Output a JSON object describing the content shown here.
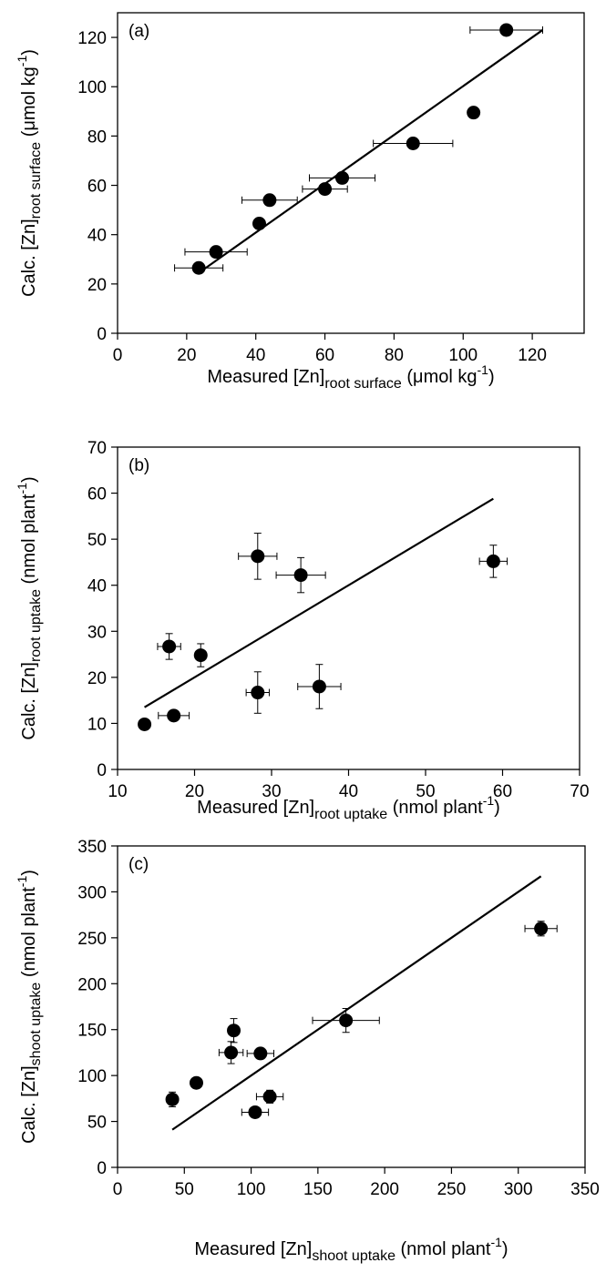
{
  "chart_data": [
    {
      "type": "scatter",
      "panel_label": "(a)",
      "xlabel": {
        "base": "Measured [Zn]",
        "sub": "root surface",
        "unit": " (μmol kg",
        "sup": "-1",
        "close": ")"
      },
      "ylabel": {
        "base": "Calc. [Zn]",
        "sub": "root surface",
        "unit": " (μmol kg",
        "sup": "-1",
        "close": ")"
      },
      "xlim": [
        0,
        135
      ],
      "ylim": [
        0,
        130
      ],
      "xticks": [
        0,
        20,
        40,
        60,
        80,
        100,
        120
      ],
      "yticks": [
        0,
        20,
        40,
        60,
        80,
        100,
        120
      ],
      "points": [
        {
          "x": 23.5,
          "y": 26.5,
          "xerr": 7,
          "yerr": 0
        },
        {
          "x": 28.5,
          "y": 33,
          "xerr": 9,
          "yerr": 0
        },
        {
          "x": 41,
          "y": 44.5,
          "xerr": 0,
          "yerr": 0
        },
        {
          "x": 44,
          "y": 54,
          "xerr": 8,
          "yerr": 0
        },
        {
          "x": 60,
          "y": 58.5,
          "xerr": 6.5,
          "yerr": 0
        },
        {
          "x": 65,
          "y": 63,
          "xerr": 9.5,
          "yerr": 0
        },
        {
          "x": 85.5,
          "y": 77,
          "xerr": 11.5,
          "yerr": 0
        },
        {
          "x": 103,
          "y": 89.5,
          "xerr": 0,
          "yerr": 0
        },
        {
          "x": 112.5,
          "y": 123,
          "xerr": 10.5,
          "yerr": 0
        }
      ],
      "fit_line": [
        [
          25,
          26
        ],
        [
          123,
          123
        ]
      ]
    },
    {
      "type": "scatter",
      "panel_label": "(b)",
      "xlabel": {
        "base": "Measured [Zn]",
        "sub": "root uptake",
        "unit": " (nmol plant",
        "sup": "-1",
        "close": ")"
      },
      "ylabel": {
        "base": "Calc. [Zn]",
        "sub": "root uptake",
        "unit": " (nmol plant",
        "sup": "-1",
        "close": ")"
      },
      "xlim": [
        10,
        70
      ],
      "ylim": [
        0,
        70
      ],
      "xticks": [
        10,
        20,
        30,
        40,
        50,
        60,
        70
      ],
      "yticks": [
        0,
        10,
        20,
        30,
        40,
        50,
        60,
        70
      ],
      "points": [
        {
          "x": 13.5,
          "y": 9.8,
          "xerr": 0,
          "yerr": 0
        },
        {
          "x": 16.7,
          "y": 26.7,
          "xerr": 1.5,
          "yerr": 2.8
        },
        {
          "x": 17.3,
          "y": 11.7,
          "xerr": 2,
          "yerr": 0
        },
        {
          "x": 20.8,
          "y": 24.8,
          "xerr": 0,
          "yerr": 2.5
        },
        {
          "x": 28.2,
          "y": 46.3,
          "xerr": 2.5,
          "yerr": 5
        },
        {
          "x": 28.2,
          "y": 16.7,
          "xerr": 1.5,
          "yerr": 4.5
        },
        {
          "x": 33.8,
          "y": 42.2,
          "xerr": 3.2,
          "yerr": 3.8
        },
        {
          "x": 36.2,
          "y": 18,
          "xerr": 2.8,
          "yerr": 4.8
        },
        {
          "x": 58.8,
          "y": 45.2,
          "xerr": 1.8,
          "yerr": 3.5
        }
      ],
      "fit_line": [
        [
          13.5,
          13.5
        ],
        [
          58.8,
          58.8
        ]
      ]
    },
    {
      "type": "scatter",
      "panel_label": "(c)",
      "xlabel": {
        "base": "Measured [Zn]",
        "sub": "shoot uptake",
        "unit": " (nmol plant",
        "sup": "-1",
        "close": ")"
      },
      "ylabel": {
        "base": "Calc. [Zn]",
        "sub": "shoot uptake",
        "unit": " (nmol plant",
        "sup": "-1",
        "close": ")"
      },
      "xlim": [
        0,
        350
      ],
      "ylim": [
        0,
        350
      ],
      "xticks": [
        0,
        50,
        100,
        150,
        200,
        250,
        300,
        350
      ],
      "yticks": [
        0,
        50,
        100,
        150,
        200,
        250,
        300,
        350
      ],
      "points": [
        {
          "x": 41,
          "y": 74,
          "xerr": 0,
          "yerr": 8
        },
        {
          "x": 59,
          "y": 92,
          "xerr": 0,
          "yerr": 0
        },
        {
          "x": 85,
          "y": 125,
          "xerr": 9,
          "yerr": 12
        },
        {
          "x": 87,
          "y": 149,
          "xerr": 0,
          "yerr": 13
        },
        {
          "x": 103,
          "y": 60,
          "xerr": 10,
          "yerr": 0
        },
        {
          "x": 107,
          "y": 124,
          "xerr": 10,
          "yerr": 0
        },
        {
          "x": 114,
          "y": 77,
          "xerr": 10,
          "yerr": 7
        },
        {
          "x": 171,
          "y": 160,
          "xerr": 25,
          "yerr": 13
        },
        {
          "x": 317,
          "y": 260,
          "xerr": 12,
          "yerr": 8
        }
      ],
      "fit_line": [
        [
          41,
          41
        ],
        [
          317,
          317
        ]
      ]
    }
  ]
}
